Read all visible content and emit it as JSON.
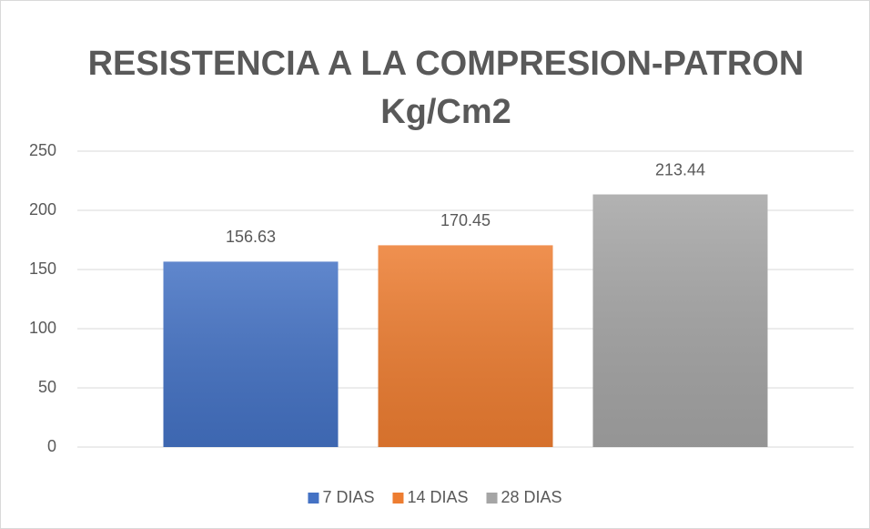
{
  "chart_data": {
    "type": "bar",
    "title": [
      "RESISTENCIA A LA COMPRESION-PATRON",
      "Kg/Cm2"
    ],
    "categories": [
      null
    ],
    "series": [
      {
        "name": "7 DIAS",
        "color": "#4472c4",
        "values": [
          156.63
        ]
      },
      {
        "name": "14 DIAS",
        "color": "#ed7d31",
        "values": [
          170.45
        ]
      },
      {
        "name": "28 DIAS",
        "color": "#a5a5a5",
        "values": [
          213.44
        ]
      }
    ],
    "ylim": [
      0,
      250
    ],
    "yticks": [
      0,
      50,
      100,
      150,
      200,
      250
    ],
    "grid": true,
    "legend": "bottom"
  }
}
